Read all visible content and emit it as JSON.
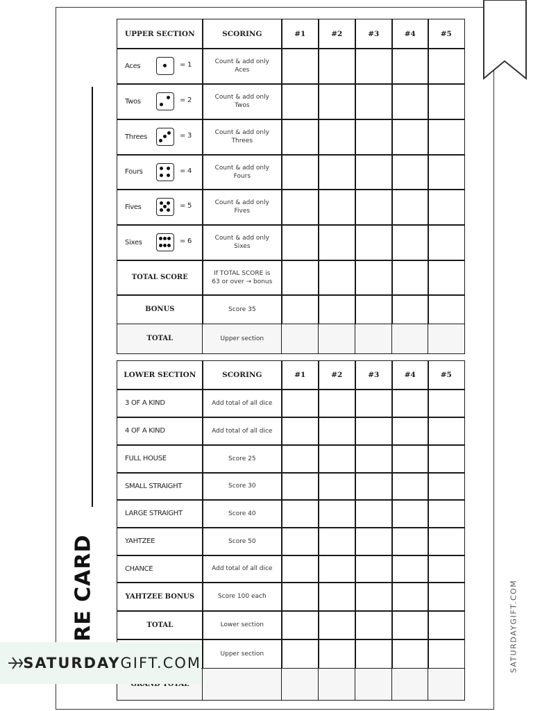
{
  "upper_section": {
    "headers": [
      "UPPER SECTION",
      "SCORING",
      "#1",
      "#2",
      "#3",
      "#4",
      "#5"
    ],
    "rows": [
      {
        "label": "Aces",
        "equals": "= 1",
        "scoring": "Count & add only Aces"
      },
      {
        "label": "Twos",
        "equals": "= 2",
        "scoring": "Count & add only Twos"
      },
      {
        "label": "Threes",
        "equals": "= 3",
        "scoring": "Count & add only Threes"
      },
      {
        "label": "Fours",
        "equals": "= 4",
        "scoring": "Count & add only Fours"
      },
      {
        "label": "Fives",
        "equals": "= 5",
        "scoring": "Count & add only Fives"
      },
      {
        "label": "Sixes",
        "equals": "= 6",
        "scoring": "Count & add only Sixes"
      },
      {
        "label": "TOTAL SCORE",
        "scoring": "If TOTAL SCORE is 63 or over → bonus"
      },
      {
        "label": "BONUS",
        "scoring": "Score 35"
      },
      {
        "label": "TOTAL",
        "scoring": "Upper section"
      }
    ]
  },
  "lower_section": {
    "headers": [
      "LOWER SECTION",
      "SCORING",
      "#1",
      "#2",
      "#3",
      "#4",
      "#5"
    ],
    "rows": [
      {
        "label": "3 OF A KIND",
        "scoring": "Add total of  all dice"
      },
      {
        "label": "4 OF A KIND",
        "scoring": "Add total of  all dice"
      },
      {
        "label": "FULL HOUSE",
        "scoring": "Score 25"
      },
      {
        "label": "SMALL STRAIGHT",
        "scoring": "Score 30"
      },
      {
        "label": "LARGE STRAIGHT",
        "scoring": "Score 40"
      },
      {
        "label": "YAHTZEE",
        "scoring": "Score 50"
      },
      {
        "label": "CHANCE",
        "scoring": "Add total of  all dice"
      },
      {
        "label": "YAHTZEE BONUS",
        "scoring": "Score 100 each"
      },
      {
        "label": "TOTAL",
        "scoring": "Lower section"
      },
      {
        "scoring": "Upper section"
      },
      {
        "label": "GRAND TOTAL"
      }
    ]
  },
  "side_title": "ORE CARD",
  "watermark": {
    "bold": "SATURDAY",
    "light": "GIFT.COM"
  },
  "side_watermark": "SATURDAYGIFT.COM"
}
